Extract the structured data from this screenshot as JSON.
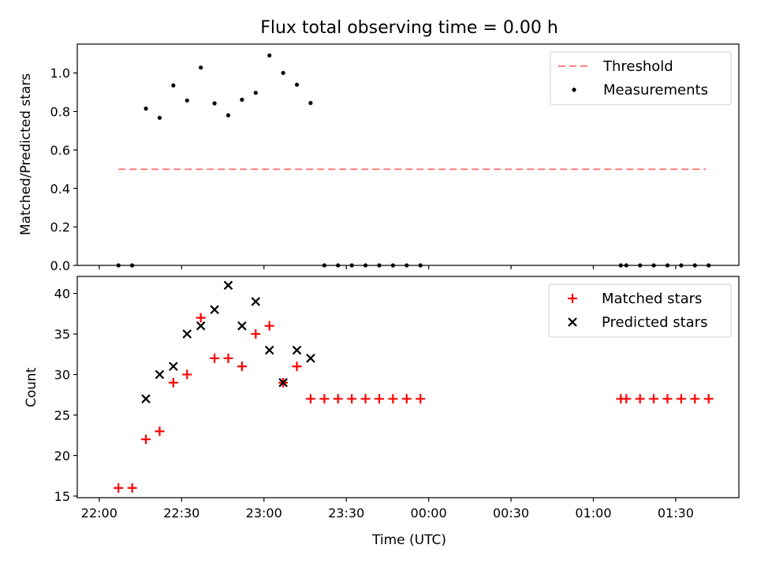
{
  "chart_data": {
    "title": "Flux total observing time = 0.00 h",
    "xlabel": "Time (UTC)",
    "x_tick_labels": [
      "22:00",
      "22:30",
      "23:00",
      "23:30",
      "00:00",
      "00:30",
      "01:00",
      "01:30"
    ],
    "x_tick_minutes": [
      0,
      30,
      60,
      90,
      120,
      150,
      180,
      210
    ],
    "x_range_minutes": [
      -8,
      233
    ],
    "x_note": "minutes after 22:00 UTC",
    "panels": [
      {
        "type": "scatter",
        "ylabel": "Matched/Predicted stars",
        "ylim": [
          0.0,
          1.15
        ],
        "y_ticks": [
          0.0,
          0.2,
          0.4,
          0.6,
          0.8,
          1.0
        ],
        "y_tick_labels": [
          "0.0",
          "0.2",
          "0.4",
          "0.6",
          "0.8",
          "1.0"
        ],
        "legend_position": "top-right",
        "threshold": {
          "name": "Threshold",
          "value": 0.5,
          "x_range": [
            7,
            221
          ],
          "color": "#ff7f7f"
        },
        "series": [
          {
            "name": "Measurements",
            "color": "#000000",
            "x": [
              7,
              12,
              17,
              22,
              27,
              32,
              37,
              42,
              47,
              52,
              57,
              62,
              67,
              72,
              77,
              82,
              87,
              92,
              97,
              102,
              107,
              112,
              117,
              190,
              192,
              197,
              202,
              207,
              212,
              217,
              222
            ],
            "y": [
              0.0,
              0.0,
              0.815,
              0.767,
              0.935,
              0.857,
              1.028,
              0.842,
              0.78,
              0.861,
              0.897,
              1.091,
              1.0,
              0.939,
              0.844,
              0.0,
              0.0,
              0.0,
              0.0,
              0.0,
              0.0,
              0.0,
              0.0,
              0.0,
              0.0,
              0.0,
              0.0,
              0.0,
              0.0,
              0.0,
              0.0
            ]
          }
        ]
      },
      {
        "type": "scatter",
        "ylabel": "Count",
        "ylim": [
          14.8,
          42.1
        ],
        "y_ticks": [
          15,
          20,
          25,
          30,
          35,
          40
        ],
        "y_tick_labels": [
          "15",
          "20",
          "25",
          "30",
          "35",
          "40"
        ],
        "legend_position": "top-right",
        "series": [
          {
            "name": "Matched stars",
            "marker": "plus",
            "color": "#ff0000",
            "x": [
              7,
              12,
              17,
              22,
              27,
              32,
              37,
              42,
              47,
              52,
              57,
              62,
              67,
              72,
              77,
              82,
              87,
              92,
              97,
              102,
              107,
              112,
              117,
              190,
              192,
              197,
              202,
              207,
              212,
              217,
              222
            ],
            "y": [
              16,
              16,
              22,
              23,
              29,
              30,
              37,
              32,
              32,
              31,
              35,
              36,
              29,
              31,
              27,
              27,
              27,
              27,
              27,
              27,
              27,
              27,
              27,
              27,
              27,
              27,
              27,
              27,
              27,
              27,
              27
            ]
          },
          {
            "name": "Predicted stars",
            "marker": "x",
            "color": "#000000",
            "x": [
              17,
              22,
              27,
              32,
              37,
              42,
              47,
              52,
              57,
              62,
              67,
              72,
              77
            ],
            "y": [
              27,
              30,
              31,
              35,
              36,
              38,
              41,
              36,
              39,
              33,
              29,
              33,
              32
            ]
          }
        ]
      }
    ]
  }
}
